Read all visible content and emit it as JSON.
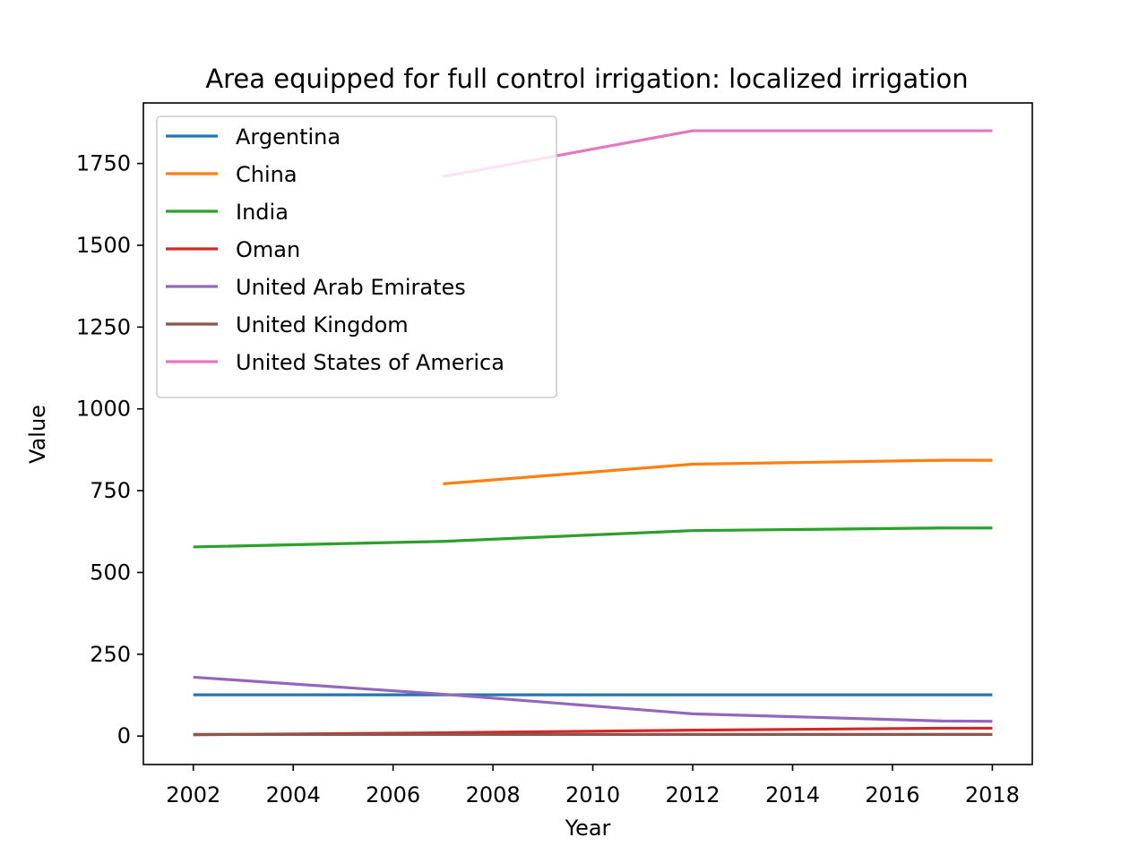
{
  "chart_data": {
    "type": "line",
    "title": "Area equipped for full control irrigation: localized irrigation",
    "xlabel": "Year",
    "ylabel": "Value",
    "xlim": [
      2001.0,
      2018.8
    ],
    "ylim": [
      -87,
      1935
    ],
    "xticks": [
      2002,
      2004,
      2006,
      2008,
      2010,
      2012,
      2014,
      2016,
      2018
    ],
    "yticks": [
      0,
      250,
      500,
      750,
      1000,
      1250,
      1500,
      1750
    ],
    "grid": false,
    "legend_position": "top-left",
    "series": [
      {
        "name": "Argentina",
        "color": "#1f77b4",
        "points": [
          [
            2002,
            126
          ],
          [
            2007,
            126
          ],
          [
            2012,
            126
          ],
          [
            2017,
            126
          ],
          [
            2018,
            126
          ]
        ]
      },
      {
        "name": "China",
        "color": "#ff7f0e",
        "points": [
          [
            2007,
            771
          ],
          [
            2012,
            831
          ],
          [
            2017,
            843
          ],
          [
            2018,
            843
          ]
        ]
      },
      {
        "name": "India",
        "color": "#2ca02c",
        "points": [
          [
            2002,
            578
          ],
          [
            2007,
            595
          ],
          [
            2012,
            628
          ],
          [
            2017,
            636
          ],
          [
            2018,
            636
          ]
        ]
      },
      {
        "name": "Oman",
        "color": "#d62728",
        "points": [
          [
            2002,
            4
          ],
          [
            2007,
            10
          ],
          [
            2012,
            18
          ],
          [
            2017,
            24
          ],
          [
            2018,
            24
          ]
        ]
      },
      {
        "name": "United Arab Emirates",
        "color": "#9467bd",
        "points": [
          [
            2002,
            180
          ],
          [
            2007,
            128
          ],
          [
            2012,
            68
          ],
          [
            2017,
            46
          ],
          [
            2018,
            45
          ]
        ]
      },
      {
        "name": "United Kingdom",
        "color": "#8c564b",
        "points": [
          [
            2002,
            5
          ],
          [
            2007,
            5
          ],
          [
            2012,
            5
          ],
          [
            2017,
            5
          ],
          [
            2018,
            5
          ]
        ]
      },
      {
        "name": "United States of America",
        "color": "#e377c2",
        "points": [
          [
            2007,
            1710
          ],
          [
            2012,
            1850
          ],
          [
            2017,
            1850
          ],
          [
            2018,
            1850
          ]
        ]
      }
    ]
  }
}
